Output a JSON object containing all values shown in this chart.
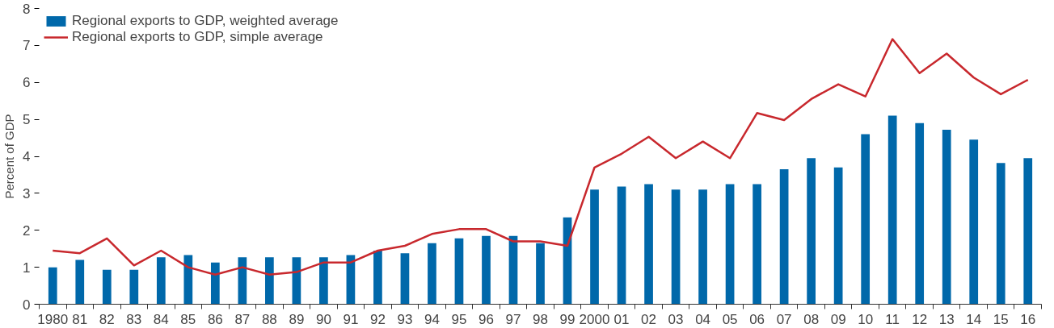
{
  "chart_data": {
    "type": "bar",
    "ylabel": "Percent of GDP",
    "categories": [
      "1980",
      "81",
      "82",
      "83",
      "84",
      "85",
      "86",
      "87",
      "88",
      "89",
      "90",
      "91",
      "92",
      "93",
      "94",
      "95",
      "96",
      "97",
      "98",
      "99",
      "2000",
      "01",
      "02",
      "03",
      "04",
      "05",
      "06",
      "07",
      "08",
      "09",
      "10",
      "11",
      "12",
      "13",
      "14",
      "15",
      "16"
    ],
    "series": [
      {
        "name": "Regional exports to GDP, weighted average",
        "color": "#0068aa",
        "values": [
          1.0,
          1.2,
          0.93,
          0.93,
          1.27,
          1.33,
          1.13,
          1.27,
          1.27,
          1.27,
          1.27,
          1.33,
          1.45,
          1.38,
          1.65,
          1.78,
          1.85,
          1.85,
          1.65,
          2.35,
          3.1,
          3.18,
          3.25,
          3.1,
          3.1,
          3.25,
          3.25,
          3.65,
          3.95,
          3.7,
          4.6,
          5.1,
          4.9,
          4.72,
          4.45,
          3.82,
          3.95
        ]
      },
      {
        "name": "Regional exports to GDP, simple average",
        "type": "line",
        "color": "#c8282d",
        "values": [
          1.45,
          1.38,
          1.78,
          1.05,
          1.45,
          1.0,
          0.8,
          1.0,
          0.8,
          0.87,
          1.13,
          1.13,
          1.45,
          1.58,
          1.9,
          2.03,
          2.03,
          1.7,
          1.7,
          1.58,
          3.7,
          4.07,
          4.53,
          3.95,
          4.4,
          3.95,
          5.17,
          4.98,
          5.55,
          5.95,
          5.62,
          7.17,
          6.25,
          6.78,
          6.13,
          5.68,
          6.07
        ]
      }
    ],
    "ylim": [
      0,
      8
    ],
    "yticks": [
      0,
      1,
      2,
      3,
      4,
      5,
      6,
      7,
      8
    ],
    "grid": false,
    "legend": "top left"
  }
}
